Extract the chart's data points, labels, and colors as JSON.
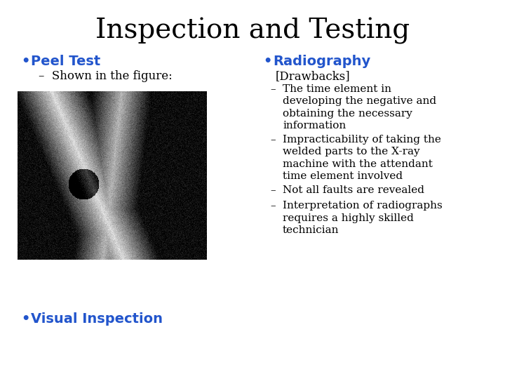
{
  "title": "Inspection and Testing",
  "title_fontsize": 28,
  "title_color": "#000000",
  "background_color": "#ffffff",
  "left_bullet1": "Peel Test",
  "left_sub1": "Shown in the figure:",
  "left_bullet2": "Visual Inspection",
  "right_bullet1": "Radiography",
  "right_sub_header": "[Drawbacks]",
  "right_sub_items": [
    "The time element in\ndeveloping the negative and\nobtaining the necessary\ninformation",
    "Impracticability of taking the\nwelded parts to the X-ray\nmachine with the attendant\ntime element involved",
    "Not all faults are revealed",
    "Interpretation of radiographs\nrequires a highly skilled\ntechnician"
  ],
  "bullet_color": "#2255cc",
  "text_color": "#000000",
  "bullet_fontsize": 14,
  "sub_fontsize": 12,
  "body_fontsize": 11
}
